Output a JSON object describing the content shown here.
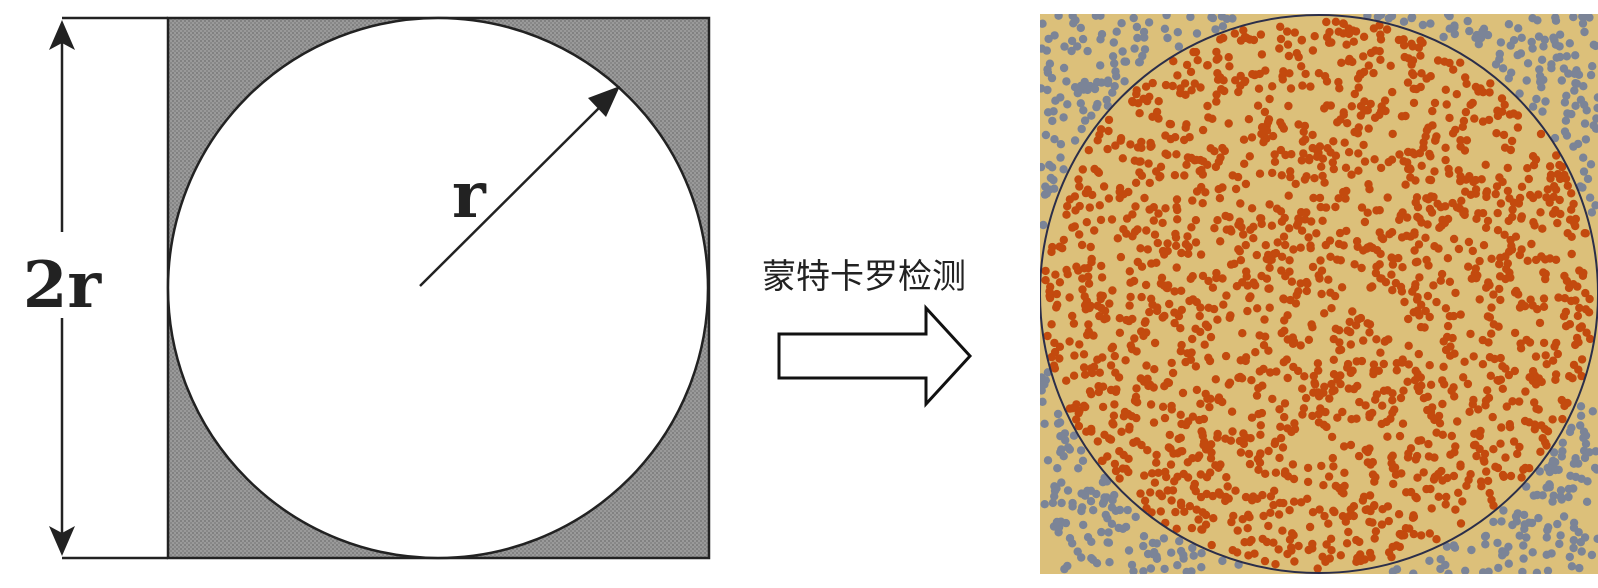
{
  "diagram": {
    "radius_label": "r",
    "diameter_label": "2r",
    "process_label": "蒙特卡罗检测"
  },
  "colors": {
    "square_fill": "#8f8f8f",
    "outline": "#222222",
    "circle_fill": "#ffffff",
    "sample_background": "#dcc07a",
    "inside_point": "#c34a0e",
    "outside_point": "#7b8497",
    "sample_circle_outline": "#2b2e4a"
  },
  "simulation": {
    "inside_points": 1800,
    "outside_points": 480
  }
}
